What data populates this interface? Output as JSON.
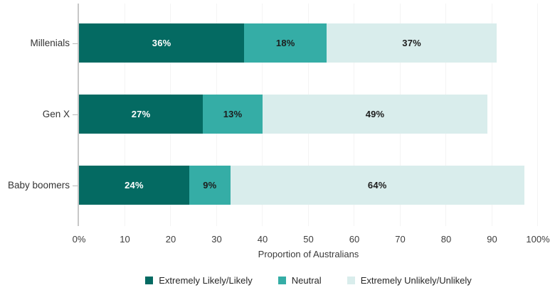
{
  "chart_data": {
    "type": "bar",
    "variant": "horizontal-stacked",
    "title": "",
    "categories": [
      "Millenials",
      "Gen X",
      "Baby boomers"
    ],
    "series": [
      {
        "name": "Extremely Likely/Likely",
        "color": "#046A62",
        "label_color": "#ffffff",
        "values": [
          36,
          27,
          24
        ]
      },
      {
        "name": "Neutral",
        "color": "#35ADA6",
        "label_color": "#1d1d1d",
        "values": [
          18,
          13,
          9
        ]
      },
      {
        "name": "Extremely Unlikely/Unlikely",
        "color": "#D9EDEC",
        "label_color": "#1d1d1d",
        "values": [
          37,
          49,
          64
        ]
      }
    ],
    "bar_value_suffix": "%",
    "xlabel": "Proportion of Australians",
    "ylabel": "",
    "xlim": [
      0,
      100
    ],
    "x_ticks": [
      "0%",
      "10",
      "20",
      "30",
      "40",
      "50",
      "60",
      "70",
      "80",
      "90",
      "100%"
    ],
    "grid": "vertical-faint",
    "legend_position": "bottom-center"
  },
  "colors": {
    "axis_line": "#c7c7c7",
    "gridline": "#f4f4f4",
    "tick_text": "#3d3d3d",
    "category_text": "#333333",
    "background": "#ffffff"
  }
}
